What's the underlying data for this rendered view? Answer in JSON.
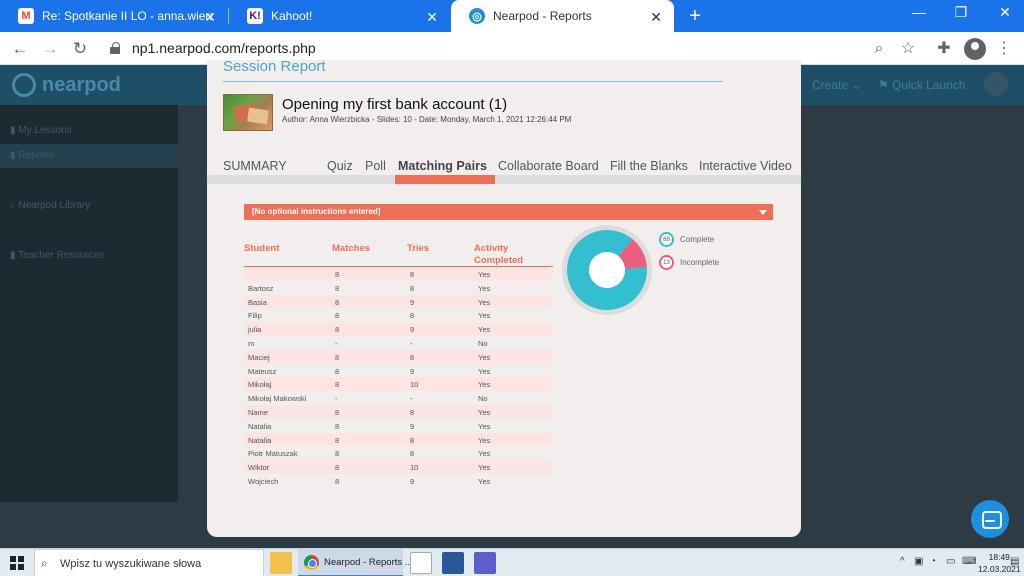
{
  "browser": {
    "tabs": [
      {
        "label": "Re: Spotkanie II LO - anna.wierzb",
        "icon": "gmail-icon"
      },
      {
        "label": "Kahoot!",
        "icon": "kahoot-icon"
      },
      {
        "label": "Nearpod - Reports",
        "icon": "nearpod-icon",
        "active": true
      }
    ],
    "url_host": "np1.nearpod.com",
    "url_path": "/reports.php",
    "close_glyph": "✕",
    "new_tab_glyph": "+"
  },
  "nearpod": {
    "logo": "nearpod",
    "create_label": "Create",
    "quick_launch_label": "Quick Launch",
    "sidebar_items": [
      "My Lessons",
      "Reports",
      "Nearpod Library",
      "Teacher Resources"
    ]
  },
  "report": {
    "session_title": "Session Report",
    "lesson_title": "Opening my first bank account (1)",
    "lesson_meta": "Author: Anna Wierzbicka - Slides: 10 - Date: Monday, March 1, 2021 12:26:44 PM",
    "tabs": [
      "SUMMARY",
      "Quiz",
      "Poll",
      "Matching Pairs",
      "Collaborate Board",
      "Fill the Blanks",
      "Interactive Video"
    ],
    "active_tab": "Matching Pairs",
    "instructions": "[No optional instructions entered]",
    "columns": {
      "student": "Student",
      "matches": "Matches",
      "tries": "Tries",
      "activity": "Activity Completed"
    },
    "rows": [
      {
        "student": "",
        "matches": "8",
        "tries": "8",
        "completed": "Yes"
      },
      {
        "student": "Bartosz",
        "matches": "8",
        "tries": "8",
        "completed": "Yes"
      },
      {
        "student": "Basia",
        "matches": "8",
        "tries": "9",
        "completed": "Yes"
      },
      {
        "student": "Filip",
        "matches": "8",
        "tries": "8",
        "completed": "Yes"
      },
      {
        "student": "julia",
        "matches": "8",
        "tries": "9",
        "completed": "Yes"
      },
      {
        "student": "m",
        "matches": "-",
        "tries": "-",
        "completed": "No"
      },
      {
        "student": "Maciej",
        "matches": "8",
        "tries": "8",
        "completed": "Yes"
      },
      {
        "student": "Mateusz",
        "matches": "8",
        "tries": "9",
        "completed": "Yes"
      },
      {
        "student": "Mikołaj",
        "matches": "8",
        "tries": "10",
        "completed": "Yes"
      },
      {
        "student": "Mikołaj Makowski",
        "matches": "-",
        "tries": "-",
        "completed": "No"
      },
      {
        "student": "Name",
        "matches": "8",
        "tries": "8",
        "completed": "Yes"
      },
      {
        "student": "Natalia",
        "matches": "8",
        "tries": "9",
        "completed": "Yes"
      },
      {
        "student": "Natalia",
        "matches": "8",
        "tries": "8",
        "completed": "Yes"
      },
      {
        "student": "Piotr Matuszak",
        "matches": "8",
        "tries": "8",
        "completed": "Yes"
      },
      {
        "student": "Wiktor",
        "matches": "8",
        "tries": "10",
        "completed": "Yes"
      },
      {
        "student": "Wojciech",
        "matches": "8",
        "tries": "9",
        "completed": "Yes"
      }
    ],
    "legend": [
      {
        "label": "Complete",
        "count": "88",
        "color": "#33bfcf"
      },
      {
        "label": "Incomplete",
        "count": "13",
        "color": "#ea5f7e"
      }
    ]
  },
  "chart_data": {
    "type": "pie",
    "categories": [
      "Complete",
      "Incomplete"
    ],
    "values": [
      88,
      13
    ],
    "colors": [
      "#33bfcf",
      "#ea5f7e"
    ],
    "title": ""
  },
  "taskbar": {
    "search_placeholder": "Wpisz tu wyszukiwane słowa",
    "chrome_label": "Nearpod - Reports ...",
    "time": "18:49",
    "date": "12.03.2021"
  }
}
